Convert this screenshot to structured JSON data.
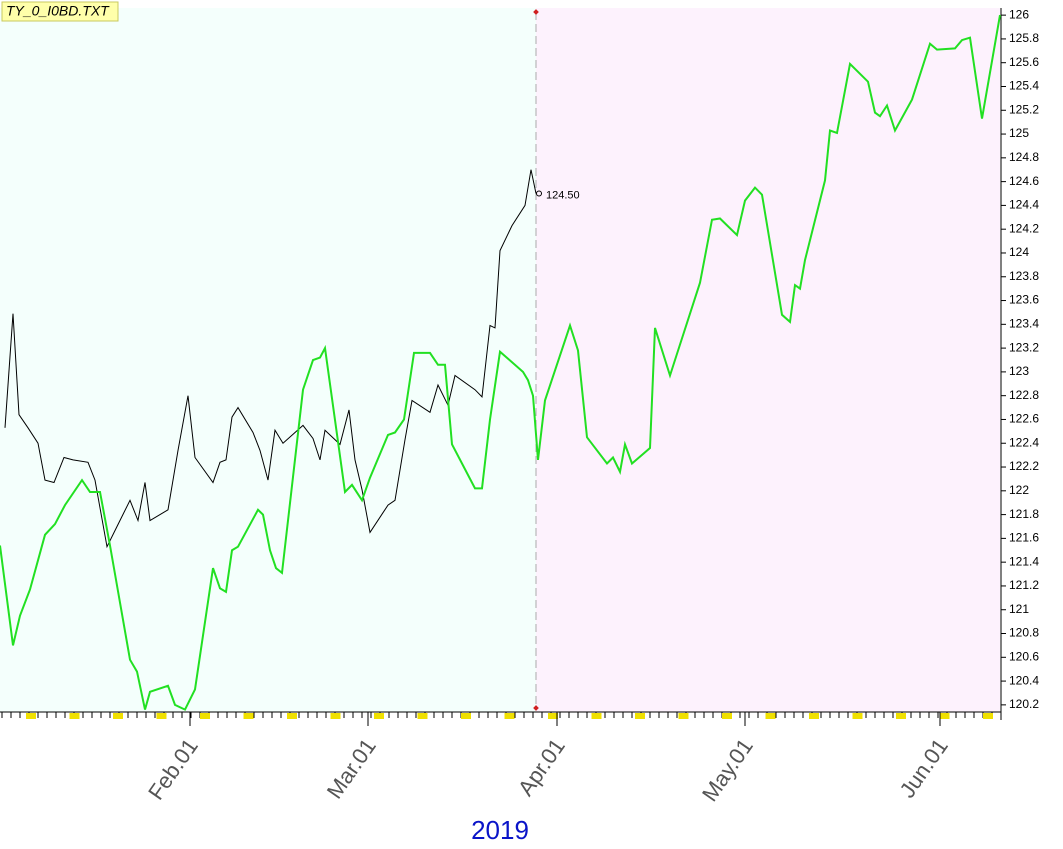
{
  "chart_data": {
    "type": "line",
    "title": "TY_0_I0BD.TXT",
    "x_label": "2019",
    "xlim": [
      0,
      100
    ],
    "ylim": [
      120.14,
      126.06
    ],
    "xticks": [
      {
        "value": 19,
        "label": "Feb.01"
      },
      {
        "value": 36.8,
        "label": "Mar.01"
      },
      {
        "value": 55.7,
        "label": "Apr.01"
      },
      {
        "value": 74.5,
        "label": "May.01"
      },
      {
        "value": 94,
        "label": "Jun.01"
      }
    ],
    "yticks": [
      120.2,
      120.4,
      120.6,
      120.8,
      121,
      121.2,
      121.4,
      121.6,
      121.8,
      122,
      122.2,
      122.4,
      122.6,
      122.8,
      123,
      123.2,
      123.4,
      123.6,
      123.8,
      124,
      124.2,
      124.4,
      124.6,
      124.8,
      125,
      125.2,
      125.4,
      125.6,
      125.8,
      126
    ],
    "divider_x": 53.6,
    "left_background": "#f4fffc",
    "right_background": "#fdf2fd",
    "series": [
      {
        "color": "#000000",
        "end_label": "124.50",
        "x": [
          0.5,
          1.3,
          1.9,
          2.8,
          3.8,
          4.5,
          5.4,
          6.4,
          7.3,
          8.8,
          9.5,
          10.7,
          11.7,
          13,
          13.8,
          14.5,
          15,
          16.8,
          17.8,
          18.8,
          19.5,
          21.3,
          22,
          22.6,
          23.2,
          23.8,
          25.3,
          26,
          26.8,
          27.5,
          28.3,
          30.3,
          31.3,
          32,
          32.5,
          34,
          34.9,
          35.5,
          36.2,
          37,
          38.8,
          39.5,
          40.5,
          41.2,
          43,
          43.8,
          44.8,
          45.5,
          47.5,
          48.2,
          49,
          49.5,
          50,
          51.2,
          52.5,
          53.1,
          53.6
        ],
        "values": [
          122.53,
          123.49,
          122.64,
          122.53,
          122.4,
          122.09,
          122.07,
          122.28,
          122.26,
          122.24,
          122.09,
          121.53,
          121.7,
          121.92,
          121.75,
          122.07,
          121.75,
          121.84,
          122.34,
          122.8,
          122.28,
          122.07,
          122.24,
          122.26,
          122.62,
          122.7,
          122.49,
          122.34,
          122.09,
          122.51,
          122.4,
          122.55,
          122.44,
          122.26,
          122.51,
          122.39,
          122.68,
          122.26,
          122.01,
          121.65,
          121.88,
          121.92,
          122.43,
          122.76,
          122.66,
          122.89,
          122.72,
          122.97,
          122.85,
          122.79,
          123.39,
          123.37,
          124.02,
          124.23,
          124.4,
          124.7,
          124.5
        ]
      },
      {
        "color": "#22e022",
        "x": [
          0,
          1.3,
          2,
          3,
          4.5,
          5.5,
          6.5,
          8.2,
          9,
          10,
          11,
          13,
          13.7,
          14.5,
          15,
          16.8,
          17.5,
          18.5,
          19.5,
          21.3,
          22,
          22.6,
          23.2,
          23.8,
          25.8,
          26.3,
          27,
          27.6,
          28.2,
          30.3,
          31.3,
          32,
          32.5,
          34.5,
          35.2,
          36.2,
          37,
          38.8,
          39.5,
          40.4,
          41.4,
          43,
          43.8,
          44.5,
          45.2,
          47.5,
          48.2,
          49,
          50,
          52.3,
          52.8,
          53.3,
          53.8,
          54.5,
          57,
          57.8,
          58.7,
          60.7,
          61.3,
          62,
          62.5,
          63.2,
          65,
          65.5,
          67,
          67.5,
          70,
          71.2,
          72,
          73.7,
          74.5,
          75.5,
          76.2,
          78.2,
          79,
          79.5,
          80,
          80.5,
          82.5,
          83,
          83.7,
          85,
          86.8,
          87.5,
          88,
          88.7,
          89.5,
          91.2,
          93,
          93.7,
          95.5,
          96.2,
          97,
          98.2,
          100
        ],
        "values": [
          121.54,
          120.7,
          120.95,
          121.17,
          121.63,
          121.72,
          121.88,
          122.09,
          121.99,
          121.99,
          121.54,
          120.58,
          120.48,
          120.16,
          120.31,
          120.36,
          120.2,
          120.16,
          120.33,
          121.35,
          121.18,
          121.15,
          121.5,
          121.53,
          121.84,
          121.8,
          121.5,
          121.35,
          121.31,
          122.85,
          123.1,
          123.12,
          123.2,
          121.99,
          122.05,
          121.92,
          122.11,
          122.47,
          122.49,
          122.6,
          123.16,
          123.16,
          123.06,
          123.06,
          122.39,
          122.02,
          122.02,
          122.6,
          123.17,
          123,
          122.93,
          122.8,
          122.26,
          122.76,
          123.39,
          123.18,
          122.45,
          122.23,
          122.28,
          122.16,
          122.39,
          122.23,
          122.36,
          123.37,
          122.97,
          123.1,
          123.75,
          124.28,
          124.29,
          124.15,
          124.44,
          124.55,
          124.49,
          123.48,
          123.42,
          123.73,
          123.7,
          123.94,
          124.61,
          125.03,
          125.01,
          125.59,
          125.44,
          125.18,
          125.15,
          125.24,
          125.03,
          125.29,
          125.76,
          125.71,
          125.72,
          125.79,
          125.81,
          125.13,
          126
        ]
      }
    ]
  }
}
